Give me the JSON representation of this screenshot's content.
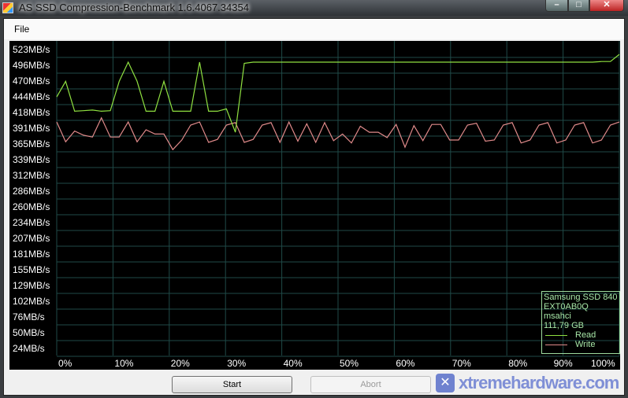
{
  "window": {
    "title": "AS SSD Compression-Benchmark 1.6.4067.34354",
    "minimize_icon": "minimize-icon",
    "maximize_icon": "maximize-icon",
    "close_icon": "close-icon"
  },
  "menu": {
    "file": "File"
  },
  "buttons": {
    "start": "Start",
    "abort": "Abort",
    "abort_enabled": false
  },
  "legend": {
    "drive": "Samsung SSD 840",
    "firmware": "EXT0AB0Q",
    "driver": "msahci",
    "size": "111,79 GB",
    "read": "Read",
    "write": "Write"
  },
  "watermark": "xtremehardware.com",
  "colors": {
    "read": "#8fe040",
    "write": "#e08a8a",
    "grid": "#1f4a48",
    "background": "#000000",
    "axis_text": "#ffffff"
  },
  "chart_data": {
    "type": "line",
    "y_tick_labels": [
      "523MB/s",
      "496MB/s",
      "470MB/s",
      "444MB/s",
      "418MB/s",
      "391MB/s",
      "365MB/s",
      "339MB/s",
      "312MB/s",
      "286MB/s",
      "260MB/s",
      "234MB/s",
      "207MB/s",
      "181MB/s",
      "155MB/s",
      "129MB/s",
      "102MB/s",
      "76MB/s",
      "50MB/s",
      "24MB/s"
    ],
    "y_ticks": [
      523,
      496,
      470,
      444,
      418,
      391,
      365,
      339,
      312,
      286,
      260,
      234,
      207,
      181,
      155,
      129,
      102,
      76,
      50,
      24
    ],
    "x_tick_labels": [
      "0%",
      "10%",
      "20%",
      "30%",
      "40%",
      "50%",
      "60%",
      "70%",
      "80%",
      "90%",
      "100%"
    ],
    "x_range": [
      0,
      100
    ],
    "grid": true,
    "legend_placement": "bottom-right",
    "series": [
      {
        "name": "Read",
        "values": [
          444,
          470,
          420,
          421,
          422,
          420,
          421,
          470,
          502,
          470,
          420,
          420,
          470,
          420,
          420,
          420,
          502,
          420,
          420,
          424,
          385,
          500,
          502,
          502,
          502,
          502,
          502,
          502,
          502,
          502,
          502,
          502,
          502,
          502,
          502,
          502,
          502,
          502,
          502,
          502,
          502,
          502,
          502,
          502,
          502,
          502,
          502,
          502,
          502,
          502,
          502,
          502,
          502,
          502,
          502,
          502,
          502,
          502,
          502,
          502,
          502,
          503,
          503,
          515
        ]
      },
      {
        "name": "Write",
        "values": [
          402,
          369,
          387,
          380,
          377,
          409,
          377,
          377,
          402,
          369,
          389,
          382,
          382,
          356,
          372,
          397,
          402,
          368,
          373,
          397,
          401,
          368,
          373,
          397,
          401,
          368,
          402,
          370,
          399,
          368,
          401,
          371,
          382,
          367,
          395,
          385,
          385,
          376,
          398,
          360,
          396,
          371,
          398,
          398,
          372,
          372,
          397,
          400,
          370,
          372,
          397,
          401,
          367,
          372,
          397,
          401,
          367,
          372,
          397,
          401,
          367,
          372,
          397,
          402
        ]
      }
    ]
  }
}
